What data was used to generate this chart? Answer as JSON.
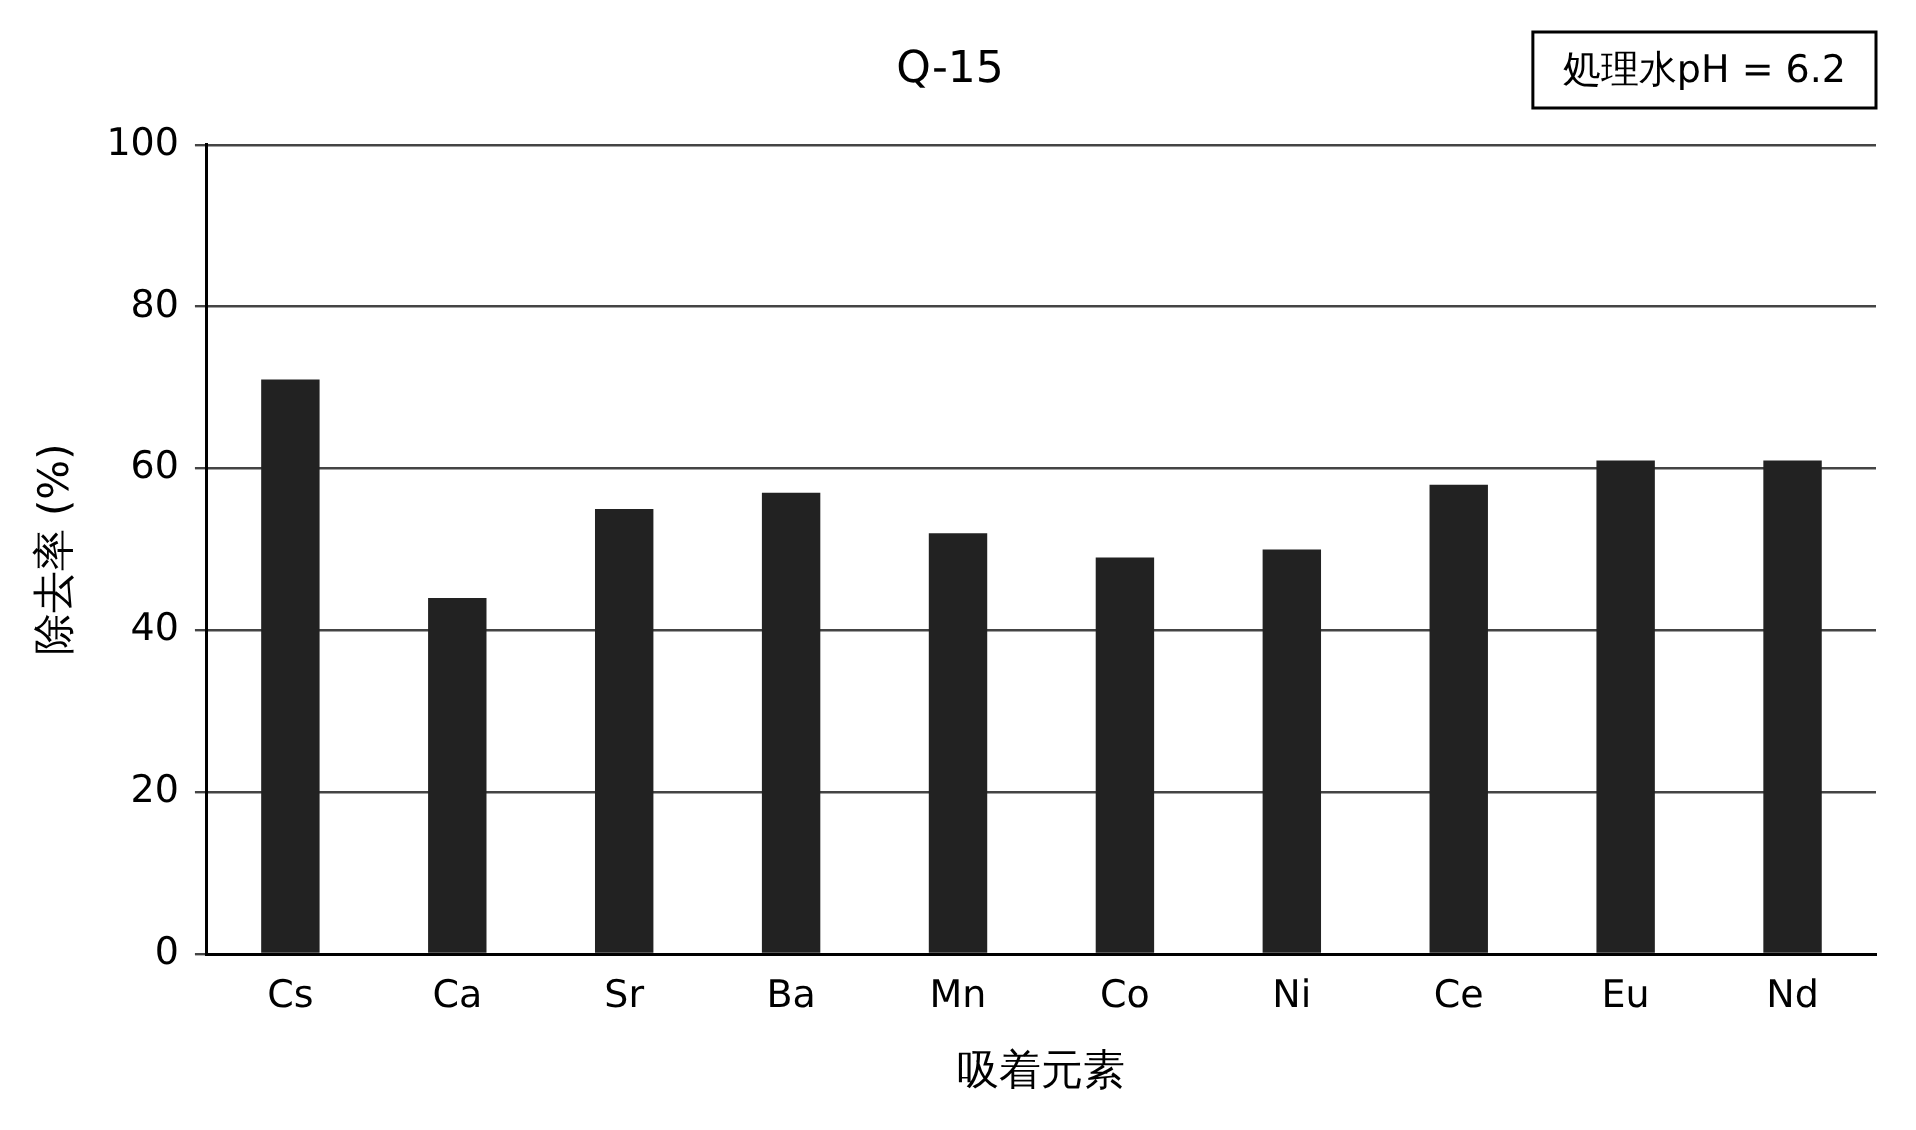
{
  "chart_data": {
    "type": "bar",
    "title": "Q-15",
    "xlabel": "吸着元素",
    "ylabel": "除去率 (%)",
    "annotations": [
      "処理水pH = 6.2"
    ],
    "categories": [
      "Cs",
      "Ca",
      "Sr",
      "Ba",
      "Mn",
      "Co",
      "Ni",
      "Ce",
      "Eu",
      "Nd"
    ],
    "values": [
      71,
      44,
      55,
      57,
      52,
      49,
      50,
      58,
      61,
      61
    ],
    "color": "#222222",
    "ylim": [
      0,
      100
    ],
    "yticks": [
      0,
      20,
      40,
      60,
      80,
      100
    ],
    "grid": "y",
    "legend": false
  }
}
